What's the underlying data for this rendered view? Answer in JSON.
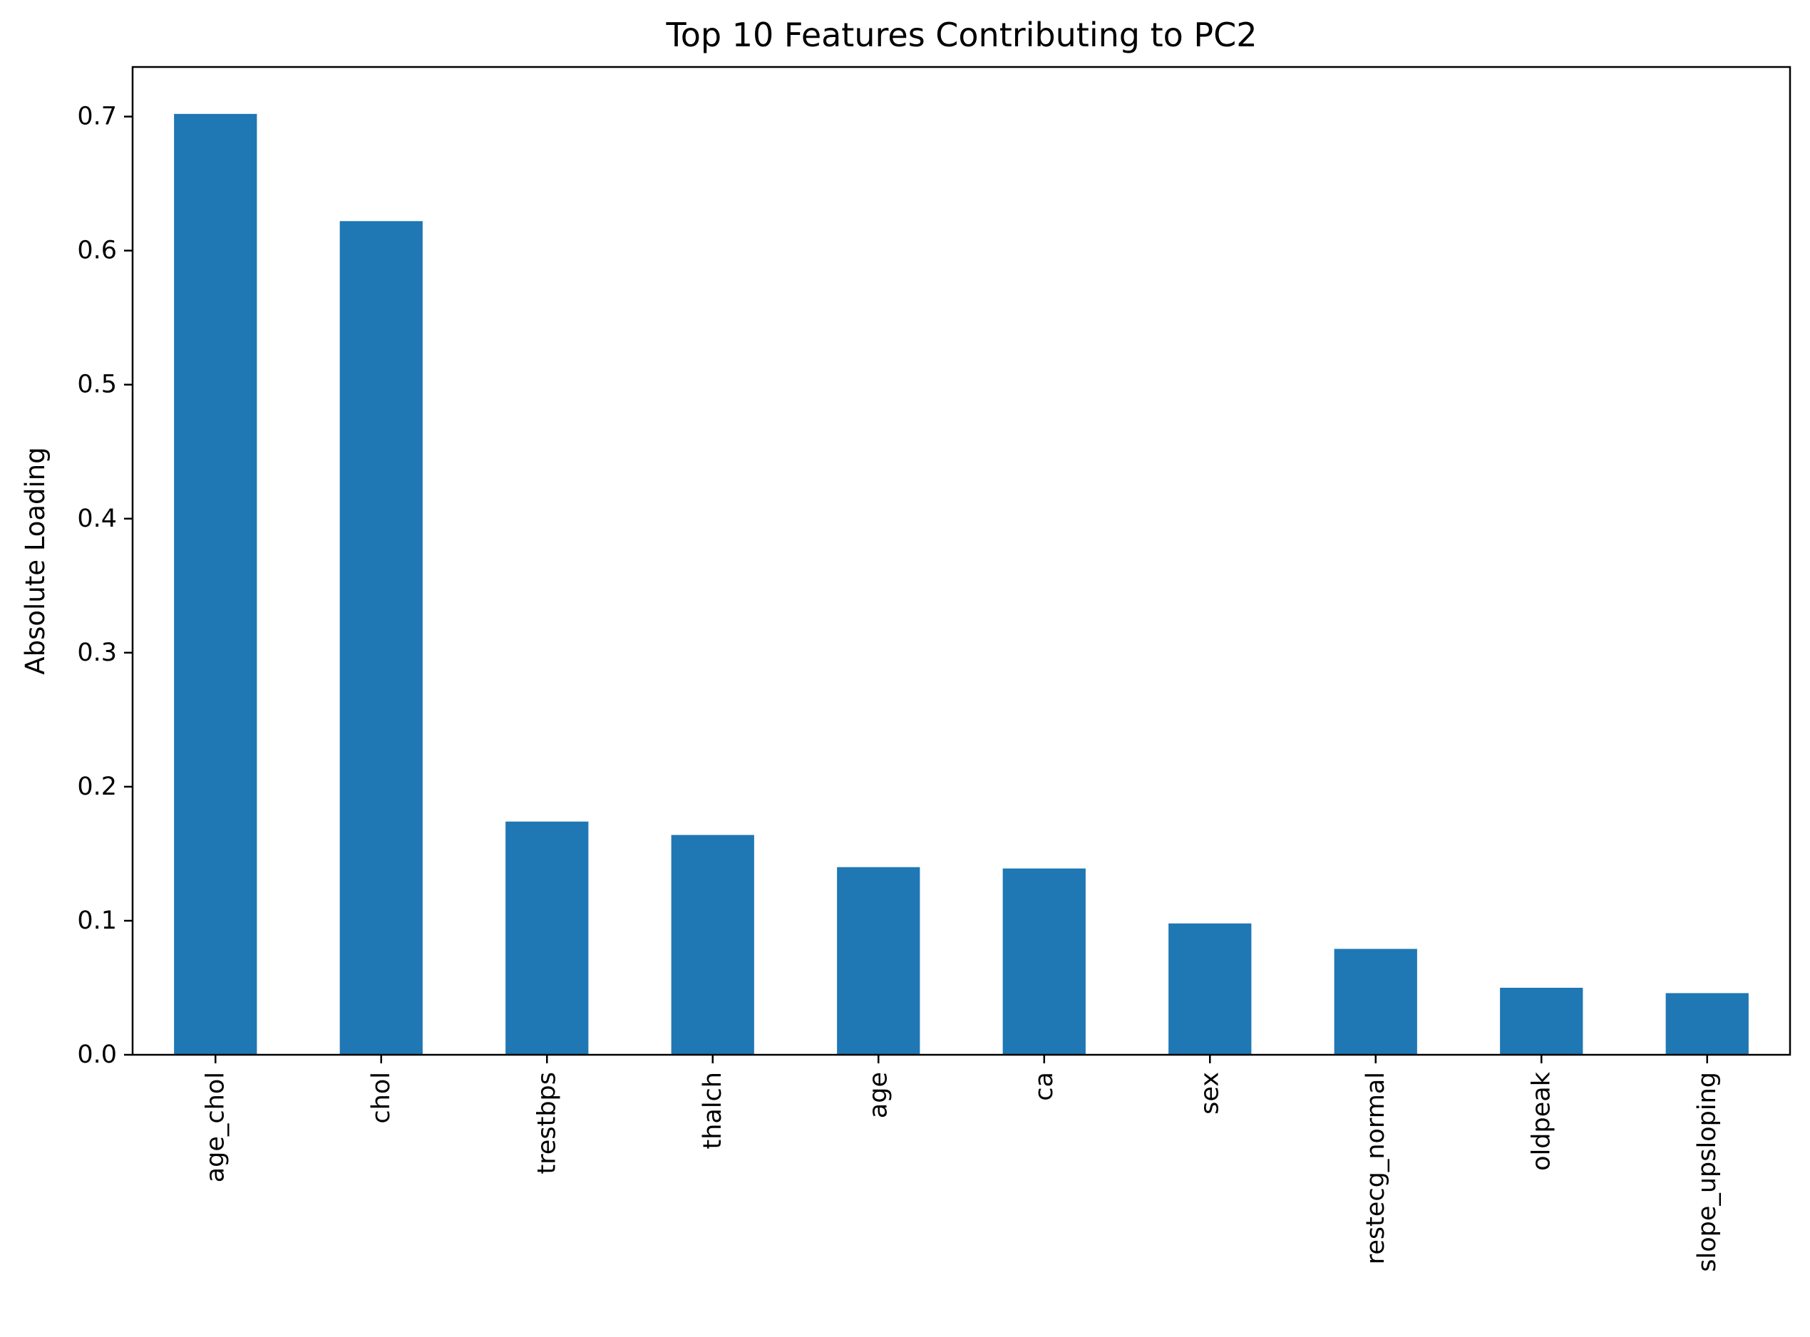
{
  "chart_data": {
    "type": "bar",
    "title": "Top 10 Features Contributing to PC2",
    "xlabel": "",
    "ylabel": "Absolute Loading",
    "categories": [
      "age_chol",
      "chol",
      "trestbps",
      "thalch",
      "age",
      "ca",
      "sex",
      "restecg_normal",
      "oldpeak",
      "slope_upsloping"
    ],
    "values": [
      0.702,
      0.622,
      0.174,
      0.164,
      0.14,
      0.139,
      0.098,
      0.079,
      0.05,
      0.046
    ],
    "ylim": [
      0,
      0.737
    ],
    "yticks": [
      0.0,
      0.1,
      0.2,
      0.3,
      0.4,
      0.5,
      0.6,
      0.7
    ],
    "ytick_labels": [
      "0.0",
      "0.1",
      "0.2",
      "0.3",
      "0.4",
      "0.5",
      "0.6",
      "0.7"
    ],
    "grid": false,
    "legend": false,
    "bar_color": "#1f77b4",
    "axis_color": "#000000"
  }
}
